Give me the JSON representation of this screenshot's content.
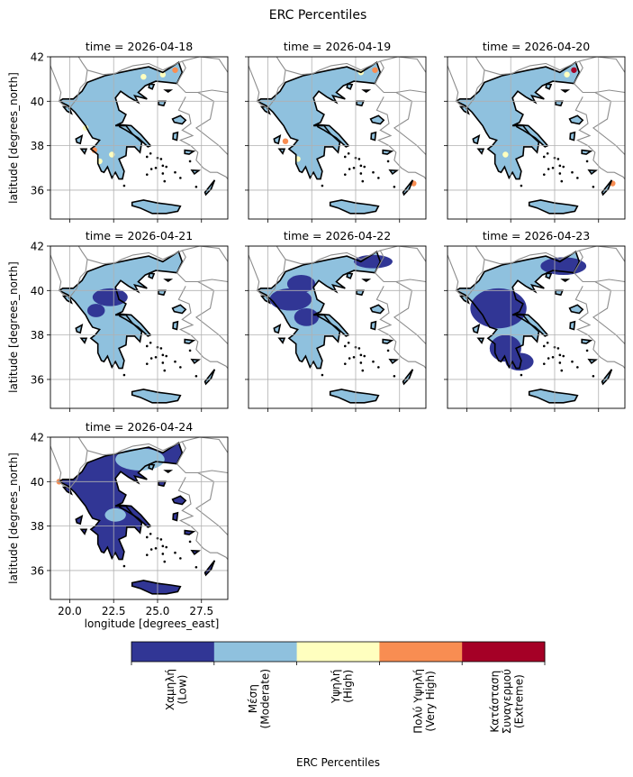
{
  "chart_data": {
    "type": "heatmap",
    "title": "ERC Percentiles",
    "panels": [
      {
        "time_label": "time = 2026-04-18",
        "dominant_class": 1,
        "hotspots": [
          [
            26.0,
            41.4,
            3
          ],
          [
            21.4,
            37.8,
            3
          ],
          [
            25.3,
            41.2,
            2
          ],
          [
            20.9,
            38.8,
            2
          ],
          [
            21.7,
            37.3,
            2
          ],
          [
            22.4,
            37.6,
            2
          ],
          [
            24.2,
            41.1,
            2
          ]
        ]
      },
      {
        "time_label": "time = 2026-04-19",
        "dominant_class": 1,
        "hotspots": [
          [
            26.1,
            41.4,
            3
          ],
          [
            28.3,
            36.3,
            3
          ],
          [
            21.0,
            38.2,
            3
          ],
          [
            21.7,
            37.4,
            2
          ],
          [
            25.3,
            41.3,
            2
          ]
        ]
      },
      {
        "time_label": "time = 2026-04-20",
        "dominant_class": 1,
        "hotspots": [
          [
            26.1,
            41.4,
            4
          ],
          [
            28.3,
            36.3,
            3
          ],
          [
            22.2,
            37.6,
            2
          ],
          [
            25.7,
            41.2,
            2
          ]
        ]
      },
      {
        "time_label": "time = 2026-04-21",
        "dominant_class": 1,
        "lowpatches": [
          [
            22.3,
            39.7,
            1,
            0.4
          ],
          [
            21.5,
            39.1,
            0.5,
            0.3
          ]
        ]
      },
      {
        "time_label": "time = 2026-04-22",
        "dominant_class": 1,
        "lowpatches": [
          [
            21.3,
            39.6,
            1.2,
            0.5
          ],
          [
            22.2,
            38.8,
            0.7,
            0.4
          ],
          [
            26.0,
            41.3,
            1.1,
            0.3
          ],
          [
            21.9,
            40.3,
            0.8,
            0.4
          ]
        ]
      },
      {
        "time_label": "time = 2026-04-23",
        "dominant_class": 1,
        "lowpatches": [
          [
            21.8,
            39.2,
            1.6,
            0.9
          ],
          [
            22.2,
            37.4,
            0.9,
            0.6
          ],
          [
            25.5,
            41.1,
            1.3,
            0.4
          ],
          [
            23.0,
            36.8,
            0.8,
            0.4
          ]
        ]
      },
      {
        "time_label": "time = 2026-04-24",
        "dominant_class": 0,
        "lowpatches": [],
        "moderate_patches": [
          [
            24.0,
            41.0,
            1.4,
            0.5
          ],
          [
            22.6,
            38.5,
            0.6,
            0.3
          ]
        ],
        "hotspots": [
          [
            19.4,
            40.0,
            3
          ]
        ]
      }
    ],
    "x_ticks": [
      20.0,
      22.5,
      25.0,
      27.5
    ],
    "x_tick_labels": [
      "20.0",
      "22.5",
      "25.0",
      "27.5"
    ],
    "y_ticks": [
      36,
      38,
      40,
      42
    ],
    "y_tick_labels": [
      "36",
      "38",
      "40",
      "42"
    ],
    "xlim": [
      18.9,
      29.0
    ],
    "ylim": [
      34.7,
      42.0
    ],
    "xlabel": "longitude [degrees_east]",
    "ylabel": "latitude [degrees_north]",
    "grid": true,
    "colorbar": {
      "label": "ERC Percentiles",
      "classes": [
        {
          "lines": [
            "Χαμηλή",
            "(Low)"
          ],
          "color": "#313695"
        },
        {
          "lines": [
            "Μέση",
            "(Moderate)"
          ],
          "color": "#8fc1de"
        },
        {
          "lines": [
            "Υψηλή",
            "(High)"
          ],
          "color": "#ffffbf"
        },
        {
          "lines": [
            "Πολύ Υψηλή",
            "(Very High)"
          ],
          "color": "#f88d52"
        },
        {
          "lines": [
            "Κατάσταση",
            "Συναγερμού",
            "(Extreme)"
          ],
          "color": "#a50026"
        }
      ]
    },
    "colors": {
      "coastline": "#000000",
      "borders": "#8c8c8c",
      "grid": "#b0b0b0"
    }
  }
}
